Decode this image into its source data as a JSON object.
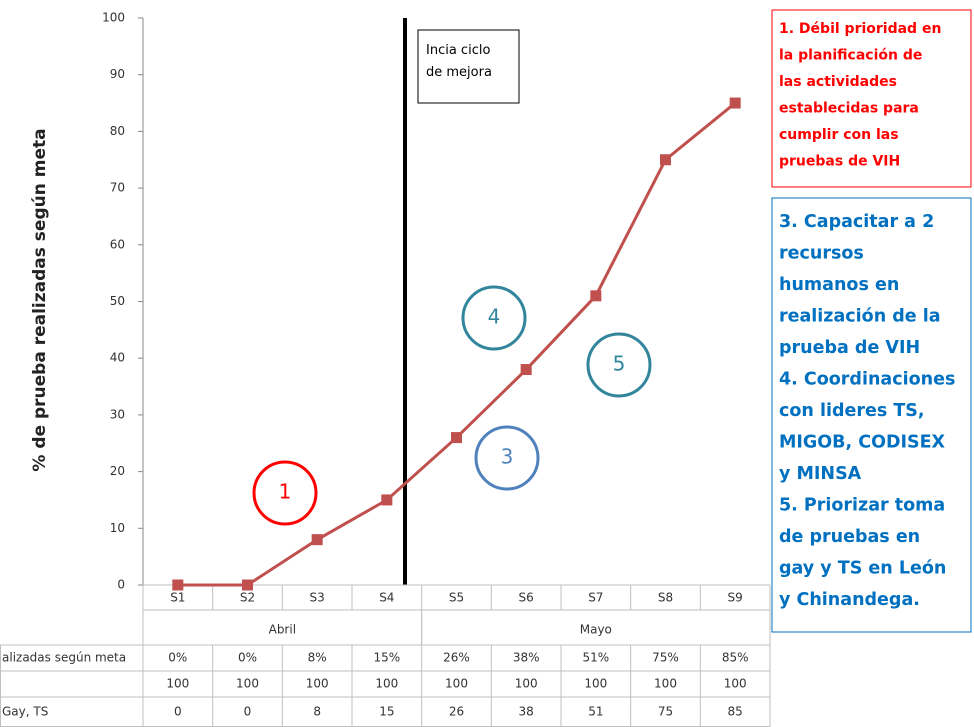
{
  "chart_data": {
    "type": "line",
    "y_label": "% de prueba realizadas según meta",
    "categories": [
      "S1",
      "S2",
      "S3",
      "S4",
      "S5",
      "S6",
      "S7",
      "S8",
      "S9"
    ],
    "groups": [
      {
        "label": "Abril",
        "span": 4
      },
      {
        "label": "Mayo",
        "span": 5
      }
    ],
    "series": [
      {
        "name": "alizadas según meta",
        "color": "#c0504d",
        "values": [
          0,
          0,
          8,
          15,
          26,
          38,
          51,
          75,
          85
        ],
        "value_labels": [
          "0%",
          "0%",
          "8%",
          "15%",
          "26%",
          "38%",
          "51%",
          "75%",
          "85%"
        ]
      }
    ],
    "table_rows": [
      {
        "values": [
          100,
          100,
          100,
          100,
          100,
          100,
          100,
          100,
          100
        ]
      },
      {
        "label": "Gay, TS",
        "values": [
          0,
          0,
          8,
          15,
          26,
          38,
          51,
          75,
          85
        ]
      }
    ],
    "ylim": [
      0,
      100
    ],
    "yticks": [
      0,
      10,
      20,
      30,
      40,
      50,
      60,
      70,
      80,
      90,
      100
    ],
    "grid": false,
    "marker_note": "Incia ciclo de mejora",
    "circles": [
      "1",
      "3",
      "4",
      "5"
    ],
    "red_note": [
      "1. Débil prioridad en",
      "la planificación de",
      "las actividades",
      "establecidas para",
      "cumplir con las",
      "pruebas de VIH"
    ],
    "blue_note": [
      "3. Capacitar a 2",
      "recursos",
      "humanos en",
      "realización de la",
      "prueba de VIH",
      "4. Coordinaciones",
      "con lideres TS,",
      "MIGOB, CODISEX",
      "y MINSA",
      "5. Priorizar toma",
      "de pruebas en",
      "gay y TS en León",
      "y Chinandega."
    ]
  }
}
